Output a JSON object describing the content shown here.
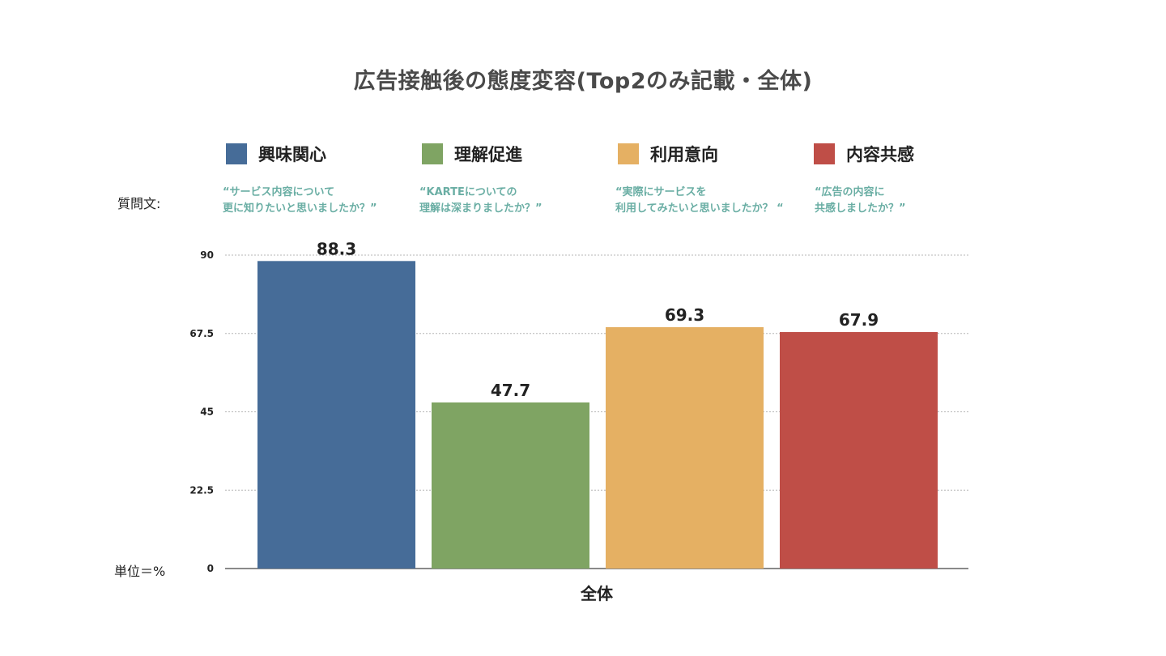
{
  "title": "広告接触後の態度変容(Top2のみ記載・全体)",
  "question_label": "質問文:",
  "unit_label": "単位＝%",
  "legend": [
    {
      "label": "興味関心",
      "color": "#466c98"
    },
    {
      "label": "理解促進",
      "color": "#7fa463"
    },
    {
      "label": "利用意向",
      "color": "#e5b063"
    },
    {
      "label": "内容共感",
      "color": "#bf4e47"
    }
  ],
  "questions": [
    "“サービス内容について\n更に知りたいと思いましたか？”",
    "“KARTEについての\n理解は深まりましたか？”",
    "“実際にサービスを\n利用してみたいと思いましたか？ “",
    "“広告の内容に\n共感しましたか？”"
  ],
  "chart_data": {
    "type": "bar",
    "categories": [
      "全体"
    ],
    "series": [
      {
        "name": "興味関心",
        "values": [
          88.3
        ],
        "color": "#466c98"
      },
      {
        "name": "理解促進",
        "values": [
          47.7
        ],
        "color": "#7fa463"
      },
      {
        "name": "利用意向",
        "values": [
          69.3
        ],
        "color": "#e5b063"
      },
      {
        "name": "内容共感",
        "values": [
          67.9
        ],
        "color": "#bf4e47"
      }
    ],
    "value_labels": [
      "88.3",
      "47.7",
      "69.3",
      "67.9"
    ],
    "yticks": [
      0,
      22.5,
      45,
      67.5,
      90
    ],
    "ytick_labels": [
      "0",
      "22.5",
      "45",
      "67.5",
      "90"
    ],
    "ylim": [
      0,
      90
    ],
    "grid": true,
    "legend_position": "top"
  }
}
